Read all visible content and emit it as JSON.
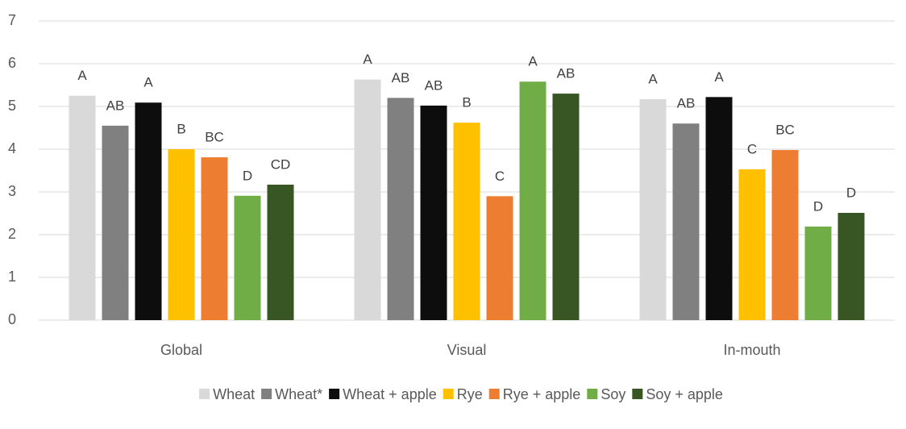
{
  "chart_data": {
    "type": "bar",
    "categories": [
      "Global",
      "Visual",
      "In-mouth"
    ],
    "series": [
      {
        "name": "Wheat",
        "color": "#d9d9d9",
        "values": [
          5.25,
          5.63,
          5.17
        ],
        "annotations": [
          "A",
          "A",
          "A"
        ]
      },
      {
        "name": "Wheat*",
        "color": "#808080",
        "values": [
          4.55,
          5.2,
          4.6
        ],
        "annotations": [
          "AB",
          "AB",
          "AB"
        ]
      },
      {
        "name": "Wheat + apple",
        "color": "#0d0d0d",
        "values": [
          5.09,
          5.02,
          5.22
        ],
        "annotations": [
          "A",
          "AB",
          "A"
        ]
      },
      {
        "name": "Rye",
        "color": "#ffc000",
        "values": [
          4.0,
          4.62,
          3.53
        ],
        "annotations": [
          "B",
          "B",
          "C"
        ]
      },
      {
        "name": "Rye + apple",
        "color": "#ed7d31",
        "values": [
          3.81,
          2.9,
          3.98
        ],
        "annotations": [
          "BC",
          "C",
          "BC"
        ]
      },
      {
        "name": "Soy",
        "color": "#70ad47",
        "values": [
          2.91,
          5.58,
          2.19
        ],
        "annotations": [
          "D",
          "A",
          "D"
        ]
      },
      {
        "name": "Soy + apple",
        "color": "#375623",
        "values": [
          3.17,
          5.3,
          2.51
        ],
        "annotations": [
          "CD",
          "AB",
          "D"
        ]
      }
    ],
    "ylim": [
      0,
      7
    ],
    "yticks": [
      0,
      1,
      2,
      3,
      4,
      5,
      6,
      7
    ],
    "grid": true,
    "legend": "bottom"
  }
}
